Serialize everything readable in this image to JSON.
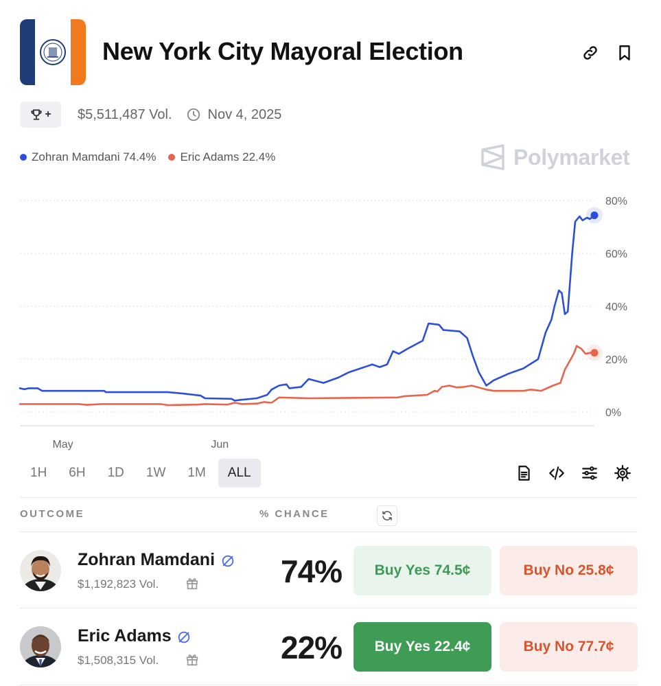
{
  "header": {
    "title": "New York City Mayoral Election"
  },
  "meta": {
    "trophy_plus": "+",
    "volume": "$5,511,487 Vol.",
    "end_date": "Nov 4, 2025"
  },
  "legend": [
    {
      "label": "Zohran Mamdani 74.4%",
      "color": "#2c4fdb"
    },
    {
      "label": "Eric Adams 22.4%",
      "color": "#e8644b"
    }
  ],
  "brand": "Polymarket",
  "chart_data": {
    "type": "line",
    "x_tick_labels": [
      "May",
      "Jun"
    ],
    "y_tick_labels": [
      "80%",
      "60%",
      "40%",
      "20%",
      "0%"
    ],
    "ylim": [
      0,
      80
    ],
    "grid": "dotted horizontal",
    "series": [
      {
        "name": "Zohran Mamdani",
        "color": "#2c4fdb",
        "points": [
          [
            0,
            9
          ],
          [
            3,
            8.6
          ],
          [
            6,
            9
          ],
          [
            12,
            9
          ],
          [
            15,
            8
          ],
          [
            57,
            8
          ],
          [
            58,
            7.5
          ],
          [
            100,
            7.5
          ],
          [
            110,
            7
          ],
          [
            122,
            6.2
          ],
          [
            125,
            5.2
          ],
          [
            143,
            5
          ],
          [
            145,
            4.3
          ],
          [
            149,
            4.6
          ],
          [
            160,
            5.2
          ],
          [
            167,
            6.5
          ],
          [
            170,
            8.5
          ],
          [
            175,
            10
          ],
          [
            180,
            10.5
          ],
          [
            182,
            9
          ],
          [
            190,
            9.5
          ],
          [
            195,
            12.5
          ],
          [
            205,
            11
          ],
          [
            215,
            13
          ],
          [
            222,
            15
          ],
          [
            230,
            16.5
          ],
          [
            238,
            18
          ],
          [
            243,
            17
          ],
          [
            248,
            18
          ],
          [
            252,
            23
          ],
          [
            256,
            22
          ],
          [
            262,
            24
          ],
          [
            272,
            27
          ],
          [
            276,
            33.5
          ],
          [
            283,
            33
          ],
          [
            286,
            31
          ],
          [
            297,
            30.5
          ],
          [
            302,
            28
          ],
          [
            306,
            21
          ],
          [
            310,
            15
          ],
          [
            315,
            10
          ],
          [
            320,
            12
          ],
          [
            330,
            14.5
          ],
          [
            340,
            16.5
          ],
          [
            350,
            20
          ],
          [
            355,
            30
          ],
          [
            359,
            35
          ],
          [
            361,
            40
          ],
          [
            364,
            46
          ],
          [
            366,
            45
          ],
          [
            368,
            37
          ],
          [
            370,
            38
          ],
          [
            373,
            60
          ],
          [
            375,
            72
          ],
          [
            378,
            74
          ],
          [
            380,
            72.5
          ],
          [
            383,
            73.5
          ],
          [
            385,
            73
          ],
          [
            388,
            74.4
          ]
        ]
      },
      {
        "name": "Eric Adams",
        "color": "#e8644b",
        "points": [
          [
            0,
            3
          ],
          [
            40,
            3
          ],
          [
            45,
            2.7
          ],
          [
            55,
            3
          ],
          [
            95,
            3
          ],
          [
            100,
            2.6
          ],
          [
            120,
            2.8
          ],
          [
            125,
            3
          ],
          [
            140,
            2.8
          ],
          [
            145,
            3.5
          ],
          [
            150,
            3
          ],
          [
            160,
            3.2
          ],
          [
            165,
            3.8
          ],
          [
            170,
            3.5
          ],
          [
            175,
            5.5
          ],
          [
            195,
            5.2
          ],
          [
            255,
            5.5
          ],
          [
            260,
            6
          ],
          [
            275,
            6.5
          ],
          [
            280,
            8
          ],
          [
            282,
            7.8
          ],
          [
            285,
            9.5
          ],
          [
            290,
            10
          ],
          [
            295,
            9.3
          ],
          [
            300,
            9.5
          ],
          [
            305,
            10
          ],
          [
            315,
            8.5
          ],
          [
            320,
            8
          ],
          [
            340,
            8
          ],
          [
            345,
            8.5
          ],
          [
            352,
            8
          ],
          [
            360,
            10
          ],
          [
            365,
            11
          ],
          [
            368,
            16
          ],
          [
            372,
            20
          ],
          [
            374,
            22
          ],
          [
            376,
            25
          ],
          [
            379,
            24
          ],
          [
            382,
            22
          ],
          [
            385,
            22.4
          ],
          [
            388,
            22.4
          ]
        ]
      }
    ]
  },
  "timeframes": [
    "1H",
    "6H",
    "1D",
    "1W",
    "1M",
    "ALL"
  ],
  "active_timeframe": "ALL",
  "table_headers": {
    "outcome": "OUTCOME",
    "chance": "% CHANCE"
  },
  "outcomes": [
    {
      "name": "Zohran Mamdani",
      "volume": "$1,192,823 Vol.",
      "chance": "74%",
      "buy_yes": "Buy Yes 74.5¢",
      "buy_no": "Buy No 25.8¢"
    },
    {
      "name": "Eric Adams",
      "volume": "$1,508,315 Vol.",
      "chance": "22%",
      "buy_yes": "Buy Yes 22.4¢",
      "buy_no": "Buy No 77.7¢"
    }
  ],
  "icons": {
    "link": "link-icon",
    "bookmark": "bookmark-icon",
    "trophy": "trophy-icon",
    "clock": "clock-icon",
    "document": "document-icon",
    "embed": "code-icon",
    "filters": "sliders-icon",
    "settings": "gear-icon",
    "refresh": "refresh-icon",
    "verified": "verified-icon",
    "gift": "gift-icon"
  }
}
